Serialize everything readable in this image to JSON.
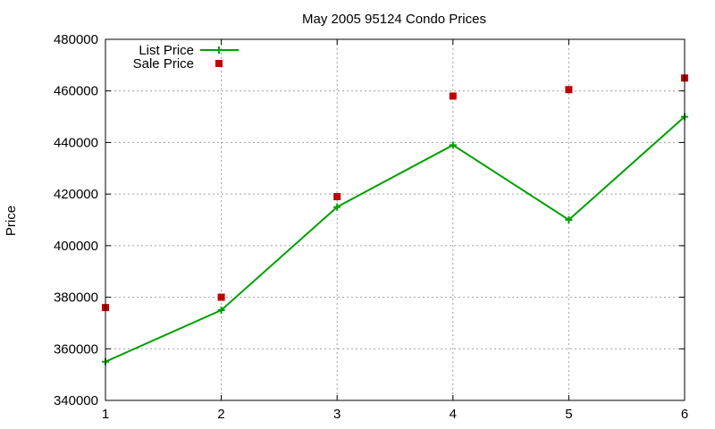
{
  "chart_data": {
    "type": "line",
    "title": "May 2005 95124 Condo Prices",
    "xlabel": "",
    "ylabel": "Price",
    "x": [
      1,
      2,
      3,
      4,
      5,
      6
    ],
    "xlim": [
      1,
      6
    ],
    "ylim": [
      340000,
      480000
    ],
    "x_ticks": [
      "1",
      "2",
      "3",
      "4",
      "5",
      "6"
    ],
    "y_ticks": [
      "340000",
      "360000",
      "380000",
      "400000",
      "420000",
      "440000",
      "460000",
      "480000"
    ],
    "grid": true,
    "legend_position": "top-left",
    "series": [
      {
        "name": "List Price",
        "style": "line+cross",
        "color": "#00a000",
        "values": [
          355000,
          375000,
          415000,
          439000,
          410000,
          450000
        ]
      },
      {
        "name": "Sale Price",
        "style": "square-markers",
        "color": "#c00000",
        "values": [
          376000,
          380000,
          419000,
          458000,
          460500,
          465000
        ]
      }
    ]
  }
}
